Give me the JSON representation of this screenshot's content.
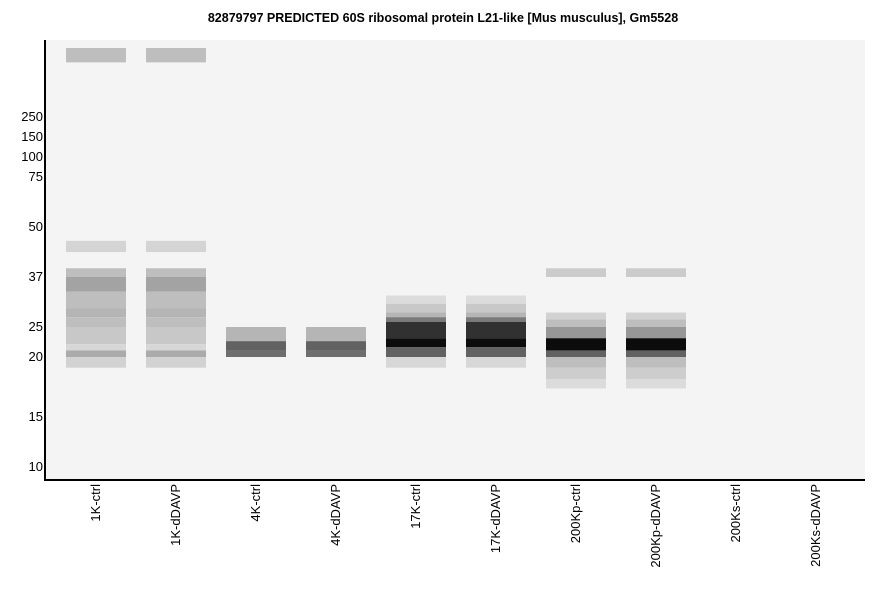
{
  "chart_data": {
    "type": "heatmap",
    "title": "82879797 PREDICTED  60S ribosomal protein L21-like [Mus musculus], Gm5528",
    "xlabel": "",
    "ylabel": "",
    "y_scale": "log",
    "y_ticks": [
      250,
      150,
      100,
      75,
      50,
      37,
      25,
      20,
      15,
      10
    ],
    "lanes": [
      "1K-ctrl",
      "1K-dDAVP",
      "4K-ctrl",
      "4K-dDAVP",
      "17K-ctrl",
      "17K-dDAVP",
      "200Kp-ctrl",
      "200Kp-dDAVP",
      "200Ks-ctrl",
      "200Ks-dDAVP"
    ],
    "intensity_scale": "0 = no signal, 1 = black",
    "bands": [
      [
        {
          "top_kda": 600,
          "bottom_kda": 500,
          "intensity": 0.22
        },
        {
          "top_kda": 46,
          "bottom_kda": 43,
          "intensity": 0.13
        },
        {
          "top_kda": 39,
          "bottom_kda": 37,
          "intensity": 0.22
        },
        {
          "top_kda": 37,
          "bottom_kda": 33,
          "intensity": 0.33
        },
        {
          "top_kda": 33,
          "bottom_kda": 29,
          "intensity": 0.22
        },
        {
          "top_kda": 29,
          "bottom_kda": 27,
          "intensity": 0.26
        },
        {
          "top_kda": 27,
          "bottom_kda": 25,
          "intensity": 0.22
        },
        {
          "top_kda": 25,
          "bottom_kda": 22,
          "intensity": 0.18
        },
        {
          "top_kda": 22,
          "bottom_kda": 21,
          "intensity": 0.12
        },
        {
          "top_kda": 21,
          "bottom_kda": 20,
          "intensity": 0.3
        },
        {
          "top_kda": 20,
          "bottom_kda": 19,
          "intensity": 0.14
        }
      ],
      [
        {
          "top_kda": 600,
          "bottom_kda": 500,
          "intensity": 0.22
        },
        {
          "top_kda": 46,
          "bottom_kda": 43,
          "intensity": 0.13
        },
        {
          "top_kda": 39,
          "bottom_kda": 37,
          "intensity": 0.22
        },
        {
          "top_kda": 37,
          "bottom_kda": 33,
          "intensity": 0.33
        },
        {
          "top_kda": 33,
          "bottom_kda": 29,
          "intensity": 0.22
        },
        {
          "top_kda": 29,
          "bottom_kda": 27,
          "intensity": 0.26
        },
        {
          "top_kda": 27,
          "bottom_kda": 25,
          "intensity": 0.22
        },
        {
          "top_kda": 25,
          "bottom_kda": 22,
          "intensity": 0.18
        },
        {
          "top_kda": 22,
          "bottom_kda": 21,
          "intensity": 0.12
        },
        {
          "top_kda": 21,
          "bottom_kda": 20,
          "intensity": 0.3
        },
        {
          "top_kda": 20,
          "bottom_kda": 19,
          "intensity": 0.14
        }
      ],
      [
        {
          "top_kda": 25,
          "bottom_kda": 22.5,
          "intensity": 0.26
        },
        {
          "top_kda": 22.5,
          "bottom_kda": 21,
          "intensity": 0.6
        },
        {
          "top_kda": 21,
          "bottom_kda": 20,
          "intensity": 0.55
        }
      ],
      [
        {
          "top_kda": 25,
          "bottom_kda": 22.5,
          "intensity": 0.26
        },
        {
          "top_kda": 22.5,
          "bottom_kda": 21,
          "intensity": 0.6
        },
        {
          "top_kda": 21,
          "bottom_kda": 20,
          "intensity": 0.55
        }
      ],
      [
        {
          "top_kda": 32,
          "bottom_kda": 30,
          "intensity": 0.1
        },
        {
          "top_kda": 30,
          "bottom_kda": 28,
          "intensity": 0.18
        },
        {
          "top_kda": 28,
          "bottom_kda": 27,
          "intensity": 0.26
        },
        {
          "top_kda": 27,
          "bottom_kda": 26,
          "intensity": 0.5
        },
        {
          "top_kda": 26,
          "bottom_kda": 23,
          "intensity": 0.8
        },
        {
          "top_kda": 23,
          "bottom_kda": 21.5,
          "intensity": 0.95
        },
        {
          "top_kda": 21.5,
          "bottom_kda": 20,
          "intensity": 0.6
        },
        {
          "top_kda": 20,
          "bottom_kda": 19,
          "intensity": 0.12
        }
      ],
      [
        {
          "top_kda": 32,
          "bottom_kda": 30,
          "intensity": 0.1
        },
        {
          "top_kda": 30,
          "bottom_kda": 28,
          "intensity": 0.18
        },
        {
          "top_kda": 28,
          "bottom_kda": 27,
          "intensity": 0.26
        },
        {
          "top_kda": 27,
          "bottom_kda": 26,
          "intensity": 0.5
        },
        {
          "top_kda": 26,
          "bottom_kda": 23,
          "intensity": 0.8
        },
        {
          "top_kda": 23,
          "bottom_kda": 21.5,
          "intensity": 0.95
        },
        {
          "top_kda": 21.5,
          "bottom_kda": 20,
          "intensity": 0.6
        },
        {
          "top_kda": 20,
          "bottom_kda": 19,
          "intensity": 0.12
        }
      ],
      [
        {
          "top_kda": 39,
          "bottom_kda": 37,
          "intensity": 0.17
        },
        {
          "top_kda": 28,
          "bottom_kda": 26.5,
          "intensity": 0.14
        },
        {
          "top_kda": 26.5,
          "bottom_kda": 25,
          "intensity": 0.22
        },
        {
          "top_kda": 25,
          "bottom_kda": 23,
          "intensity": 0.38
        },
        {
          "top_kda": 23,
          "bottom_kda": 21,
          "intensity": 0.95
        },
        {
          "top_kda": 21,
          "bottom_kda": 20,
          "intensity": 0.6
        },
        {
          "top_kda": 20,
          "bottom_kda": 19,
          "intensity": 0.22
        },
        {
          "top_kda": 19,
          "bottom_kda": 18,
          "intensity": 0.16
        },
        {
          "top_kda": 18,
          "bottom_kda": 17.2,
          "intensity": 0.1
        }
      ],
      [
        {
          "top_kda": 39,
          "bottom_kda": 37,
          "intensity": 0.17
        },
        {
          "top_kda": 28,
          "bottom_kda": 26.5,
          "intensity": 0.14
        },
        {
          "top_kda": 26.5,
          "bottom_kda": 25,
          "intensity": 0.22
        },
        {
          "top_kda": 25,
          "bottom_kda": 23,
          "intensity": 0.38
        },
        {
          "top_kda": 23,
          "bottom_kda": 21,
          "intensity": 0.95
        },
        {
          "top_kda": 21,
          "bottom_kda": 20,
          "intensity": 0.6
        },
        {
          "top_kda": 20,
          "bottom_kda": 19,
          "intensity": 0.22
        },
        {
          "top_kda": 19,
          "bottom_kda": 18,
          "intensity": 0.16
        },
        {
          "top_kda": 18,
          "bottom_kda": 17.2,
          "intensity": 0.1
        }
      ],
      [],
      []
    ],
    "grid": false,
    "legend": "none",
    "background_color": "#f4f4f4",
    "axis_color": "#000000"
  }
}
